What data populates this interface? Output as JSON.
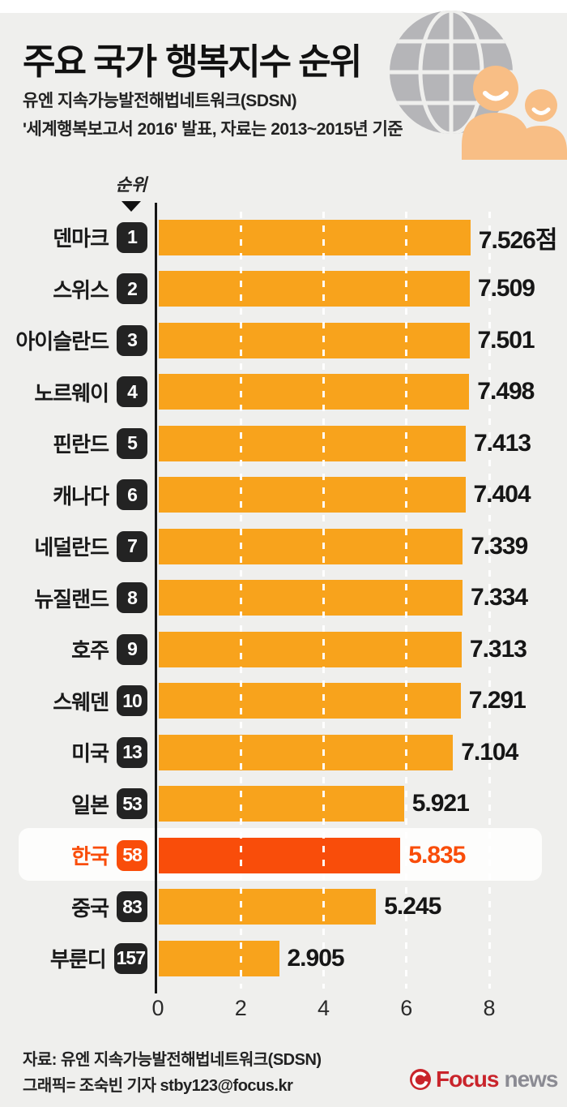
{
  "colors": {
    "background": "#EFEFED",
    "bar": "#F8A31C",
    "highlight": "#F94D0A",
    "badge_dark": "#232323",
    "logo_red": "#C9242B",
    "logo_gray": "#8B8B93",
    "globe_gray": "#B5B5B8",
    "person_orange": "#F8BE85"
  },
  "header": {
    "title_light": "주요 국가",
    "title_bold": "행복지수 순위",
    "subtitle_line1": "유엔 지속가능발전해법네트워크(SDSN)",
    "subtitle_line2": "'세계행복보고서 2016' 발표, 자료는 2013~2015년 기준"
  },
  "chart": {
    "rank_header": "순위",
    "axis_ticks": [
      0,
      2,
      4,
      6,
      8
    ]
  },
  "chart_data": {
    "type": "bar",
    "orientation": "horizontal",
    "title": "주요 국가 행복지수 순위",
    "categories": [
      "덴마크",
      "스위스",
      "아이슬란드",
      "노르웨이",
      "핀란드",
      "캐나다",
      "네덜란드",
      "뉴질랜드",
      "호주",
      "스웨덴",
      "미국",
      "일본",
      "한국",
      "중국",
      "부룬디"
    ],
    "ranks": [
      "1",
      "2",
      "3",
      "4",
      "5",
      "6",
      "7",
      "8",
      "9",
      "10",
      "13",
      "53",
      "58",
      "83",
      "157"
    ],
    "values": [
      7.526,
      7.509,
      7.501,
      7.498,
      7.413,
      7.404,
      7.339,
      7.334,
      7.313,
      7.291,
      7.104,
      5.921,
      5.835,
      5.245,
      2.905
    ],
    "value_labels": [
      "7.526점",
      "7.509",
      "7.501",
      "7.498",
      "7.413",
      "7.404",
      "7.339",
      "7.334",
      "7.313",
      "7.291",
      "7.104",
      "5.921",
      "5.835",
      "5.245",
      "2.905"
    ],
    "highlighted": "한국",
    "xlabel": "",
    "ylabel": "",
    "xlim": [
      0,
      8.8
    ],
    "grid": "white dashed vertical lines at 2, 4, 6, 8",
    "legend": false
  },
  "footer": {
    "source": "자료: 유엔 지속가능발전해법네트워크(SDSN)",
    "credit": "그래픽= 조숙빈 기자 stby123@focus.kr",
    "logo": {
      "focus": "Focus",
      "news": "news"
    }
  }
}
